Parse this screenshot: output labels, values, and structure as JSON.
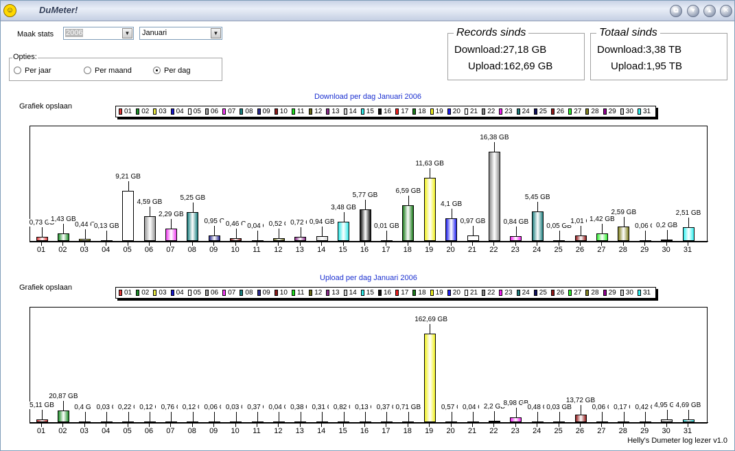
{
  "window": {
    "title": "DuMeter!",
    "icon": "smiley-icon",
    "buttons": [
      "restore",
      "menu",
      "minimize",
      "close"
    ]
  },
  "controls": {
    "maak_stats_label": "Maak stats",
    "year": "2006",
    "month": "Januari",
    "options_title": "Opties:",
    "options": [
      {
        "label": "Per jaar",
        "checked": false
      },
      {
        "label": "Per maand",
        "checked": false
      },
      {
        "label": "Per dag",
        "checked": true
      }
    ]
  },
  "records": {
    "title": "Records sinds",
    "download": "Download:27,18 GB",
    "upload": "Upload:162,69 GB"
  },
  "totals": {
    "title": "Totaal sinds",
    "download": "Download:3,38 TB",
    "upload": "Upload:1,95 TB"
  },
  "save_label": "Grafiek opslaan",
  "footer": "Helly's Dumeter log lezer v1.0",
  "colors": {
    "01": "#e23b3b",
    "02": "#1f8f2a",
    "03": "#e6e640",
    "04": "#1a1ad0",
    "05": "#ffffff",
    "06": "#9a9a9a",
    "07": "#f03cf0",
    "08": "#1a8080",
    "09": "#2a2a90",
    "10": "#8a1a1a",
    "11": "#20e020",
    "12": "#6a6a1a",
    "13": "#8a2a8a",
    "14": "#d8d8d8",
    "15": "#30e8e8",
    "16": "#101010",
    "17": "#f02020",
    "18": "#1a7a1a",
    "19": "#f0f020",
    "20": "#2020f0",
    "21": "#ffffff",
    "22": "#8a8a8a",
    "23": "#f020f0",
    "24": "#208080",
    "25": "#101060",
    "26": "#901818",
    "27": "#30f030",
    "28": "#808020",
    "29": "#900090",
    "30": "#c8c8c8",
    "31": "#30f0f0"
  },
  "chart_data": [
    {
      "type": "bar",
      "title": "Download per dag Januari 2006",
      "categories": [
        "01",
        "02",
        "03",
        "04",
        "05",
        "06",
        "07",
        "08",
        "09",
        "10",
        "11",
        "12",
        "13",
        "14",
        "15",
        "16",
        "17",
        "18",
        "19",
        "20",
        "21",
        "22",
        "23",
        "24",
        "25",
        "26",
        "27",
        "28",
        "29",
        "30",
        "31"
      ],
      "values": [
        0.73,
        1.43,
        0.44,
        0.13,
        9.21,
        4.59,
        2.29,
        5.25,
        0.95,
        0.46,
        0.04,
        0.52,
        0.72,
        0.94,
        3.48,
        5.77,
        0.01,
        6.59,
        11.63,
        4.1,
        0.97,
        16.38,
        0.84,
        5.45,
        0.05,
        1.01,
        1.42,
        2.59,
        0.06,
        0.2,
        2.51
      ],
      "labels": [
        "0,73 GB",
        "1,43 GB",
        "0,44 C",
        "0,13 GB",
        "9,21 GB",
        "4,59 GB",
        "2,29 GB",
        "5,25 GB",
        "0,95 C",
        "0,46 C",
        "0,04 C",
        "0,52 C",
        "0,72 C",
        "0,94 GB",
        "3,48 GB",
        "5,77 GB",
        "0,01 GB",
        "6,59 GB",
        "11,63 GB",
        "4,1 GB",
        "0,97 GB",
        "16,38 GB",
        "0,84 GB",
        "5,45 GB",
        "0,05 GB",
        "1,01 C",
        "1,42 GB",
        "2,59 GB",
        "0,06 G",
        "0,2 GB",
        "2,51 GB"
      ],
      "legend": [
        "01",
        "02",
        "03",
        "04",
        "05",
        "06",
        "07",
        "08",
        "09",
        "10",
        "11",
        "12",
        "13",
        "14",
        "15",
        "16",
        "17",
        "18",
        "19",
        "20",
        "21",
        "22",
        "23",
        "24",
        "25",
        "26",
        "27",
        "28",
        "29",
        "30",
        "31"
      ],
      "unit": "GB",
      "ylim": [
        0,
        18
      ]
    },
    {
      "type": "bar",
      "title": "Upload per dag Januari 2006",
      "categories": [
        "01",
        "02",
        "03",
        "04",
        "05",
        "06",
        "07",
        "08",
        "09",
        "10",
        "11",
        "12",
        "13",
        "14",
        "15",
        "16",
        "17",
        "18",
        "19",
        "20",
        "21",
        "22",
        "23",
        "24",
        "25",
        "26",
        "27",
        "28",
        "29",
        "30",
        "31"
      ],
      "values": [
        5.11,
        20.87,
        0.4,
        0.03,
        0.22,
        0.12,
        0.76,
        0.12,
        0.06,
        0.03,
        0.37,
        0.04,
        0.38,
        0.31,
        0.82,
        0.13,
        0.37,
        0.71,
        162.69,
        0.57,
        0.04,
        2.2,
        8.98,
        0.48,
        0.03,
        13.72,
        0.06,
        0.17,
        0.42,
        4.95,
        4.69
      ],
      "labels": [
        "5,11 GB",
        "20,87 GB",
        "0,4 GB",
        "0,03 C",
        "0,22 C",
        "0,12 C",
        "0,76 C",
        "0,12 G",
        "0,06 C",
        "0,03 C",
        "0,37 C",
        "0,04 G",
        "0,38 C",
        "0,31 C",
        "0,82 C",
        "0,13 C",
        "0,37 C",
        "0,71 GB",
        "162,69 GB",
        "0,57 C",
        "0,04 G",
        "2,2 GB",
        "8,98 GB",
        "0,48 C",
        "0,03 GB",
        "13,72 GB",
        "0,06 C",
        "0,17 C",
        "0,42 C",
        "4,95 GB",
        "4,69 GB"
      ],
      "legend": [
        "01",
        "02",
        "03",
        "04",
        "05",
        "06",
        "07",
        "08",
        "09",
        "10",
        "11",
        "12",
        "13",
        "14",
        "15",
        "16",
        "17",
        "18",
        "19",
        "20",
        "21",
        "22",
        "23",
        "24",
        "25",
        "26",
        "27",
        "28",
        "29",
        "30",
        "31"
      ],
      "unit": "GB",
      "ylim": [
        0,
        180
      ]
    }
  ]
}
